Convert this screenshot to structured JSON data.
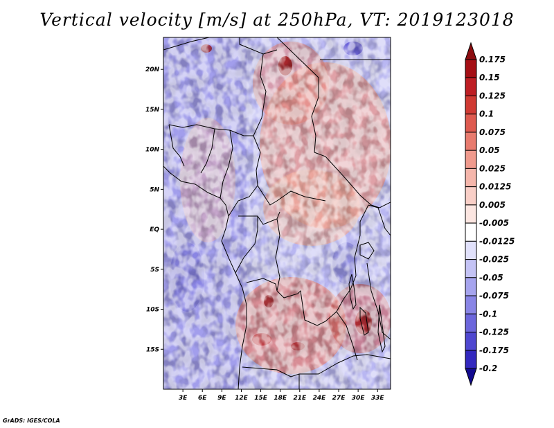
{
  "title": "Vertical velocity [m/s] at 250hPa, VT: 2019123018",
  "credit": "GrADS: IGES/COLA",
  "map": {
    "variable": "Vertical velocity",
    "units": "m/s",
    "level": "250hPa",
    "valid_time": "2019123018",
    "lon_range": [
      0,
      35
    ],
    "lat_range": [
      -20,
      24
    ],
    "lat_ticks": [
      {
        "value": 20,
        "label": "20N"
      },
      {
        "value": 15,
        "label": "15N"
      },
      {
        "value": 10,
        "label": "10N"
      },
      {
        "value": 5,
        "label": "5N"
      },
      {
        "value": 0,
        "label": "EQ"
      },
      {
        "value": -5,
        "label": "5S"
      },
      {
        "value": -10,
        "label": "10S"
      },
      {
        "value": -15,
        "label": "15S"
      }
    ],
    "lon_ticks": [
      {
        "value": 3,
        "label": "3E"
      },
      {
        "value": 6,
        "label": "6E"
      },
      {
        "value": 9,
        "label": "9E"
      },
      {
        "value": 12,
        "label": "12E"
      },
      {
        "value": 15,
        "label": "15E"
      },
      {
        "value": 18,
        "label": "18E"
      },
      {
        "value": 21,
        "label": "21E"
      },
      {
        "value": 24,
        "label": "24E"
      },
      {
        "value": 27,
        "label": "27E"
      },
      {
        "value": 30,
        "label": "30E"
      },
      {
        "value": 33,
        "label": "33E"
      }
    ]
  },
  "colorbar": {
    "levels": [
      {
        "label": "0.175",
        "color": "#a50f15"
      },
      {
        "label": "0.15",
        "color": "#be1e24"
      },
      {
        "label": "0.125",
        "color": "#d03a33"
      },
      {
        "label": "0.1",
        "color": "#de5a4f"
      },
      {
        "label": "0.075",
        "color": "#e87b6e"
      },
      {
        "label": "0.05",
        "color": "#f09a8d"
      },
      {
        "label": "0.025",
        "color": "#f5b6ab"
      },
      {
        "label": "0.0125",
        "color": "#f9cfc7"
      },
      {
        "label": "0.005",
        "color": "#fce6e1"
      },
      {
        "label": "-0.005",
        "color": "#ffffff"
      },
      {
        "label": "-0.0125",
        "color": "#e1e1fb"
      },
      {
        "label": "-0.025",
        "color": "#c4c3f5"
      },
      {
        "label": "-0.05",
        "color": "#a6a4ee"
      },
      {
        "label": "-0.075",
        "color": "#8985e6"
      },
      {
        "label": "-0.1",
        "color": "#6c66dc"
      },
      {
        "label": "-0.125",
        "color": "#4f47d0"
      },
      {
        "label": "-0.175",
        "color": "#3328bf"
      },
      {
        "label": "-0.2",
        "color": "#1a0fa8"
      }
    ],
    "top_color": "#8c0d10",
    "bottom_color": "#120a8f"
  }
}
